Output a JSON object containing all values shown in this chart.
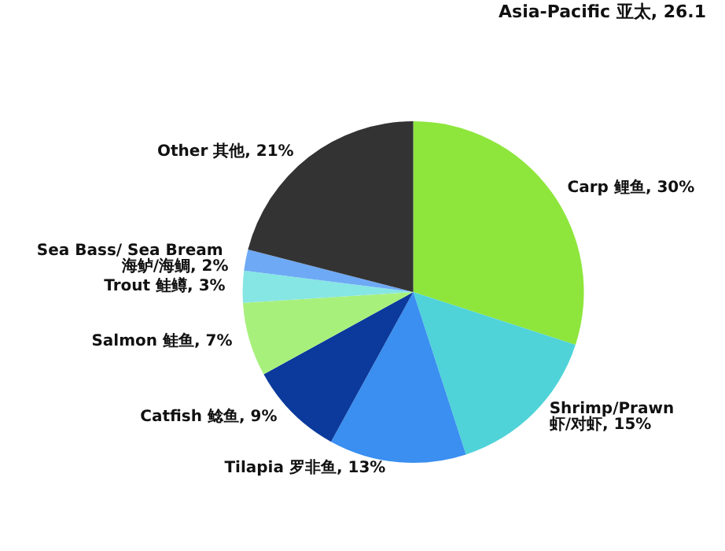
{
  "chart_data": {
    "type": "pie",
    "categories": [
      "Carp 鲤鱼",
      "Shrimp/Prawn 虾/对虾",
      "Tilapia 罗非鱼",
      "Catfish 鲶鱼",
      "Salmon 鲑鱼",
      "Trout 鲑鳟",
      "Sea Bass/ Sea Bream 海鲈/海鲷",
      "Other 其他"
    ],
    "value_labels": [
      "30%",
      "15%",
      "13%",
      "9%",
      "7%",
      "3%",
      "2%",
      "21%"
    ],
    "values": [
      30,
      15,
      13,
      9,
      7,
      3,
      2,
      21
    ],
    "colors": [
      "#8ee63c",
      "#4fd3d8",
      "#3a8ff0",
      "#0b3a9c",
      "#a8f07c",
      "#86e6e4",
      "#6ea9f5",
      "#333333"
    ],
    "annotations": [
      "Asia-Pacific 亚太, 26.1"
    ],
    "legend": false
  }
}
